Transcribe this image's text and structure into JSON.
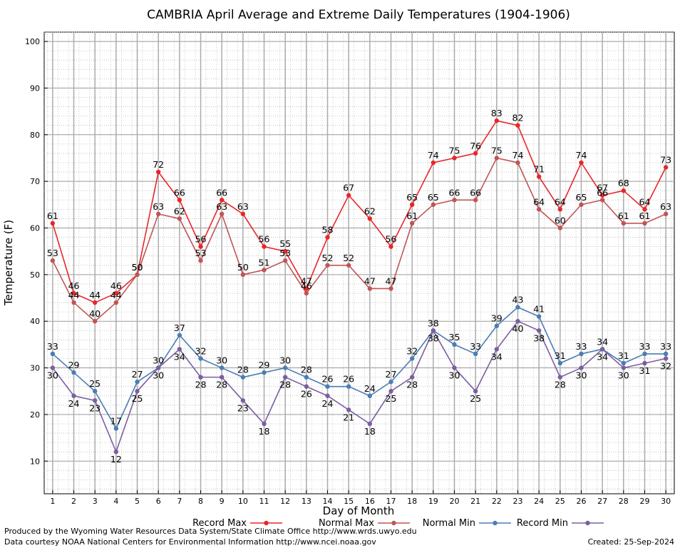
{
  "chart_data": {
    "type": "line",
    "title": "CAMBRIA April Average and Extreme Daily Temperatures (1904-1906)",
    "xlabel": "Day of Month",
    "ylabel": "Temperature (F)",
    "x": [
      1,
      2,
      3,
      4,
      5,
      6,
      7,
      8,
      9,
      10,
      11,
      12,
      13,
      14,
      15,
      16,
      17,
      18,
      19,
      20,
      21,
      22,
      23,
      24,
      25,
      26,
      27,
      28,
      29,
      30
    ],
    "x_tick_labels": [
      "1",
      "2",
      "3",
      "4",
      "5",
      "6",
      "7",
      "8",
      "9",
      "10",
      "11",
      "12",
      "13",
      "14",
      "15",
      "16",
      "17",
      "18",
      "19",
      "20",
      "21",
      "22",
      "23",
      "24",
      "25",
      "26",
      "27",
      "28",
      "29",
      "30"
    ],
    "xlim": [
      0.6,
      30.4
    ],
    "ylim": [
      3,
      102
    ],
    "y_ticks": [
      10,
      20,
      30,
      40,
      50,
      60,
      70,
      80,
      90,
      100
    ],
    "y_tick_labels": [
      "10",
      "20",
      "30",
      "40",
      "50",
      "60",
      "70",
      "80",
      "90",
      "100"
    ],
    "grid": true,
    "legend_position": "bottom",
    "series": [
      {
        "name": "Record Max",
        "color": "#e8262a",
        "values": [
          61,
          46,
          44,
          46,
          50,
          72,
          66,
          56,
          66,
          63,
          56,
          55,
          47,
          58,
          67,
          62,
          56,
          65,
          74,
          75,
          76,
          83,
          82,
          71,
          64,
          74,
          67,
          68,
          64,
          73
        ],
        "label_side": "above"
      },
      {
        "name": "Normal Max",
        "color": "#c05555",
        "values": [
          53,
          44,
          40,
          44,
          50,
          63,
          62,
          53,
          63,
          50,
          51,
          53,
          46,
          52,
          52,
          47,
          47,
          61,
          65,
          66,
          66,
          75,
          74,
          64,
          60,
          65,
          66,
          61,
          61,
          63
        ],
        "label_side": "above"
      },
      {
        "name": "Normal Min",
        "color": "#4a7db4",
        "values": [
          33,
          29,
          25,
          17,
          27,
          30,
          37,
          32,
          30,
          28,
          29,
          30,
          28,
          26,
          26,
          24,
          27,
          32,
          38,
          35,
          33,
          39,
          43,
          41,
          31,
          33,
          34,
          31,
          33,
          33
        ],
        "label_side": "above"
      },
      {
        "name": "Record Min",
        "color": "#7b5ea0",
        "values": [
          30,
          24,
          23,
          12,
          25,
          30,
          34,
          28,
          28,
          23,
          18,
          28,
          26,
          24,
          21,
          18,
          25,
          28,
          38,
          30,
          25,
          34,
          40,
          38,
          28,
          30,
          34,
          30,
          31,
          32
        ],
        "label_side": "below"
      }
    ]
  },
  "footer": {
    "line1": "Produced by the Wyoming Water Resources Data System/State Climate Office http://www.wrds.uwyo.edu",
    "line2": "Data courtesy NOAA National Centers for Environmental Information http://www.ncei.noaa.gov",
    "created": "Created:  25-Sep-2024"
  }
}
